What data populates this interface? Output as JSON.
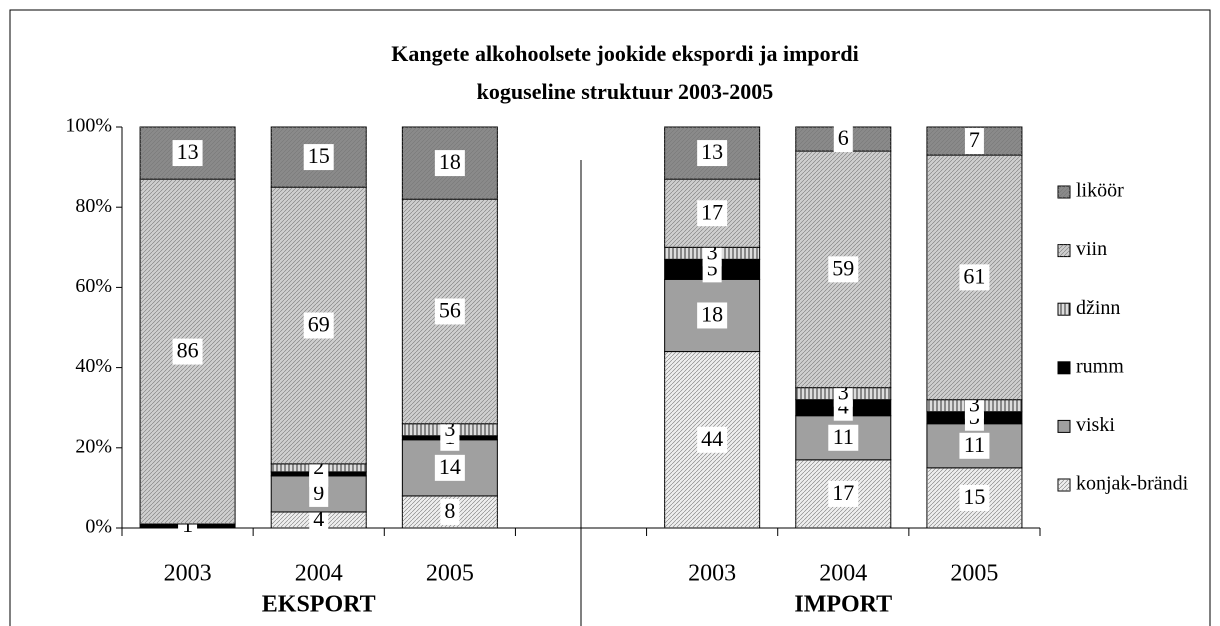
{
  "chart_data": {
    "type": "stacked_bar_100",
    "title": [
      "Kangete alkohoolsete jookide ekspordi ja impordi",
      "koguseline struktuur 2003-2005"
    ],
    "categories": [
      "2003",
      "2004",
      "2005",
      null,
      "2003",
      "2004",
      "2005"
    ],
    "groups": [
      "EKSPORT",
      "IMPORT"
    ],
    "series": [
      {
        "name": "konjak-brändi",
        "color": "#eeeeee",
        "values": [
          null,
          4,
          8,
          null,
          44,
          17,
          15
        ]
      },
      {
        "name": "viski",
        "color": "#a0a0a0",
        "values": [
          null,
          9,
          14,
          null,
          18,
          11,
          11
        ]
      },
      {
        "name": "rumm",
        "color": "#000000",
        "values": [
          1,
          1,
          1,
          null,
          5,
          4,
          3
        ]
      },
      {
        "name": "džinn",
        "color": "#dddddd",
        "values": [
          null,
          2,
          3,
          null,
          3,
          3,
          3
        ]
      },
      {
        "name": "viin",
        "color": "#cfcfcf",
        "values": [
          86,
          69,
          56,
          null,
          17,
          59,
          61
        ]
      },
      {
        "name": "liköör",
        "color": "#8a8a8a",
        "values": [
          13,
          15,
          18,
          null,
          13,
          6,
          7
        ]
      }
    ],
    "ylim": [
      0,
      100
    ],
    "yticks": [
      {
        "value": 0,
        "label": "0%"
      },
      {
        "value": 20,
        "label": "20%"
      },
      {
        "value": 40,
        "label": "40%"
      },
      {
        "value": 60,
        "label": "60%"
      },
      {
        "value": 80,
        "label": "80%"
      },
      {
        "value": 100,
        "label": "100%"
      }
    ],
    "legend": "right"
  }
}
